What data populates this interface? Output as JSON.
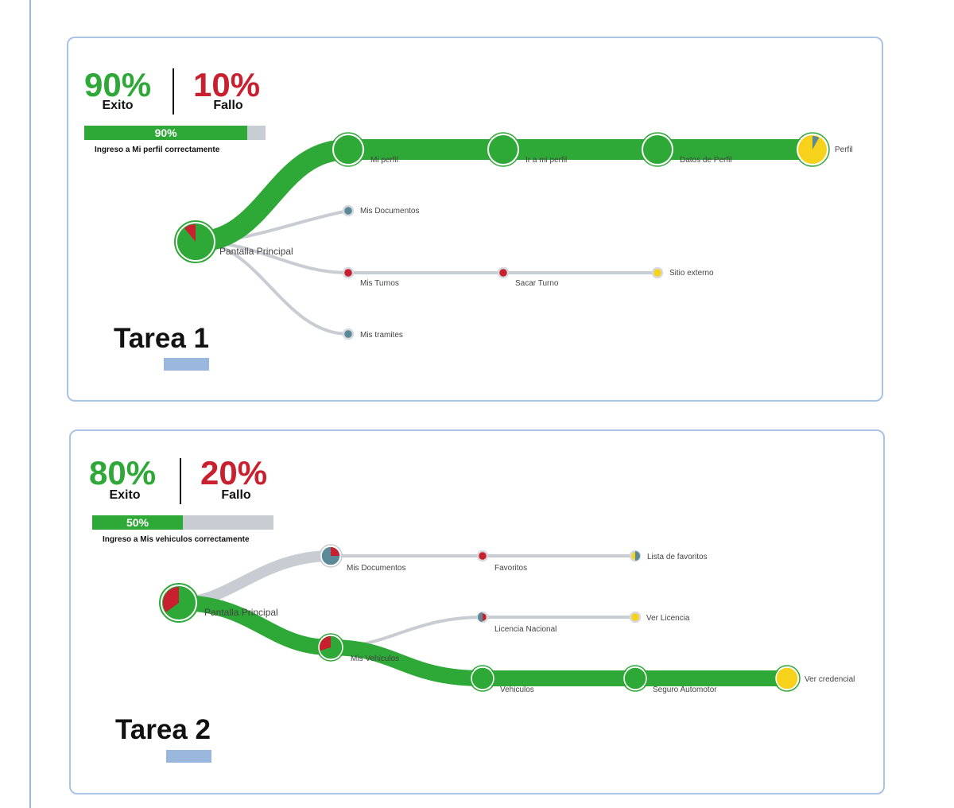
{
  "colors": {
    "success": "#2ea836",
    "fail": "#c8202f",
    "path": "#c8ccd3",
    "teal": "#5a8a98",
    "yellow": "#f6d21b",
    "accent": "#9ab8de"
  },
  "tasks": [
    {
      "title": "Tarea 1",
      "success_pct": "90%",
      "success_label": "Exito",
      "fail_pct": "10%",
      "fail_label": "Fallo",
      "progress_value": 0.9,
      "progress_label": "90%",
      "caption": "Ingreso a Mi perfil correctamente",
      "nodes": {
        "root": {
          "label": "Pantalla Principal",
          "kind": "root",
          "pie": {
            "fail": 0.11
          }
        },
        "n1": {
          "label": "Mi perfil",
          "kind": "big"
        },
        "n2": {
          "label": "Ir a mi perfil",
          "kind": "big"
        },
        "n3": {
          "label": "Datos de Perfil",
          "kind": "big"
        },
        "n4": {
          "label": "Perfil",
          "kind": "end-yellow",
          "pie": {
            "teal": 0.08
          }
        },
        "d1": {
          "label": "Mis Documentos",
          "kind": "small-teal"
        },
        "t1": {
          "label": "Mis Turnos",
          "kind": "small-red"
        },
        "t2": {
          "label": "Sacar Turno",
          "kind": "small-red"
        },
        "t3": {
          "label": "Sitio externo",
          "kind": "small-yellow"
        },
        "m1": {
          "label": "Mis tramites",
          "kind": "small-teal"
        }
      }
    },
    {
      "title": "Tarea 2",
      "success_pct": "80%",
      "success_label": "Exito",
      "fail_pct": "20%",
      "fail_label": "Fallo",
      "progress_value": 0.5,
      "progress_label": "50%",
      "caption": "Ingreso a Mis vehiculos correctamente",
      "nodes": {
        "root": {
          "label": "Pantalla Principal",
          "kind": "root",
          "pie": {
            "fail": 0.35
          }
        },
        "a1": {
          "label": "Mis Documentos",
          "kind": "teal-big",
          "pie": {
            "fail": 0.25
          }
        },
        "a2": {
          "label": "Favoritos",
          "kind": "small-red"
        },
        "a3": {
          "label": "Lista de favoritos",
          "kind": "split-yellow-teal"
        },
        "b1": {
          "label": "Mis Vehiculos",
          "kind": "mid",
          "pie": {
            "fail": 0.3
          }
        },
        "c1": {
          "label": "Licencia Nacional",
          "kind": "split-teal-red"
        },
        "c2": {
          "label": "Ver Licencia",
          "kind": "small-yellow"
        },
        "e1": {
          "label": "Vehiculos",
          "kind": "big"
        },
        "e2": {
          "label": "Seguro Automotor",
          "kind": "big"
        },
        "e3": {
          "label": "Ver credencial",
          "kind": "end-yellow",
          "pie": {
            "teal": 0
          }
        }
      }
    }
  ]
}
